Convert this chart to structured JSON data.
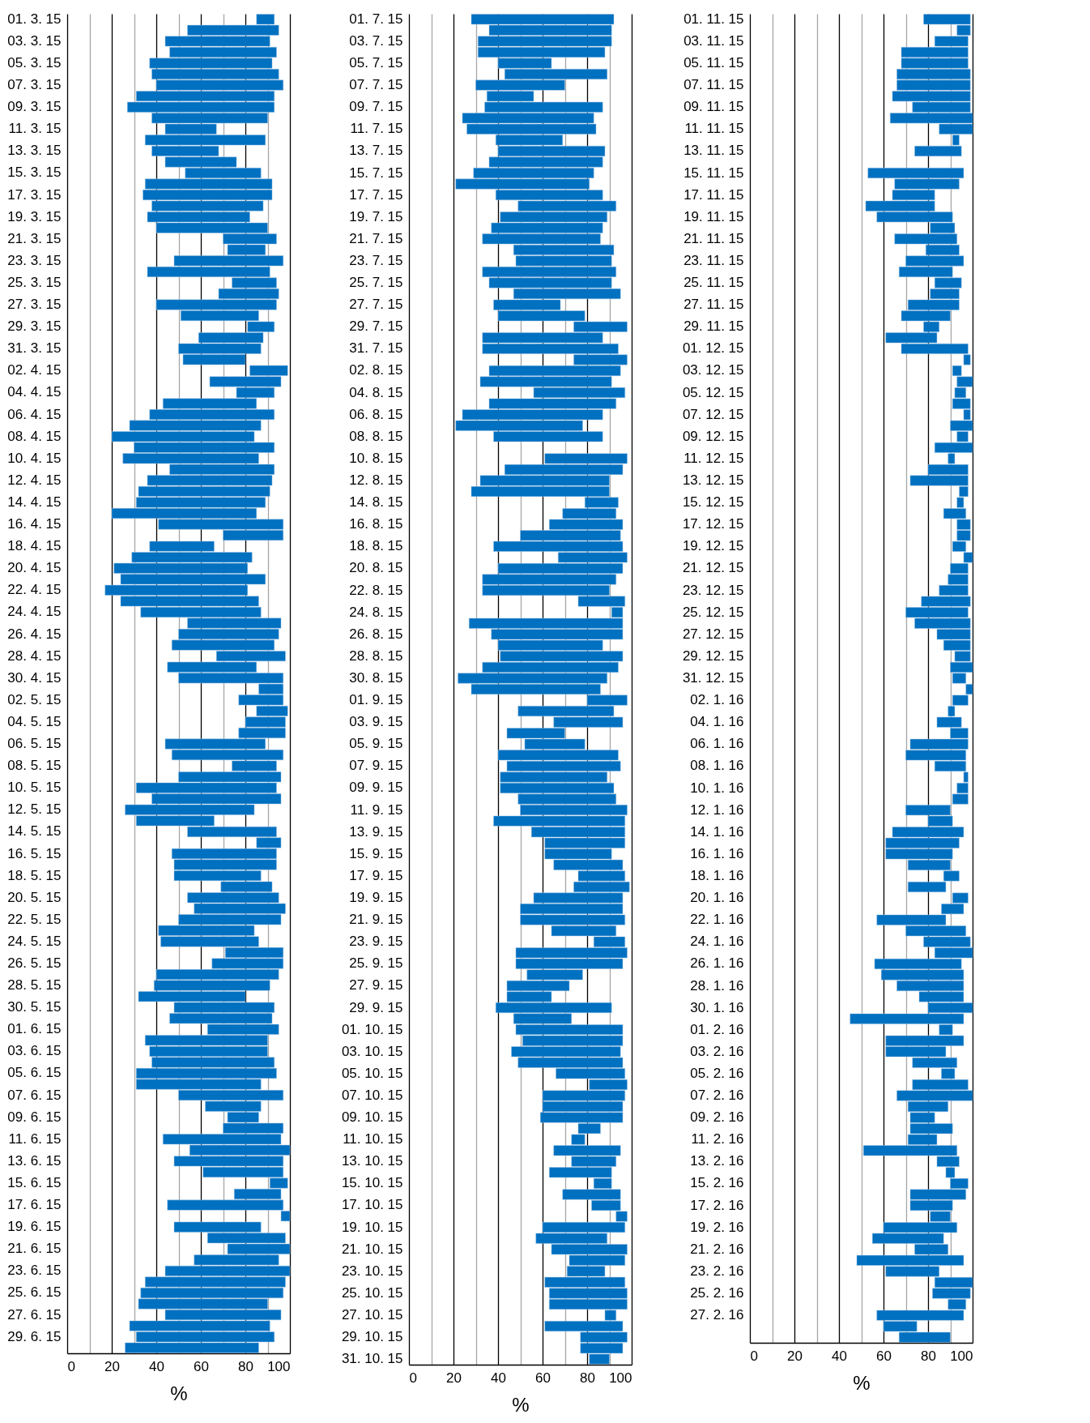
{
  "chart_data": [
    {
      "type": "bar",
      "orientation": "horizontal",
      "color": "#0070c0",
      "xlabel": "%",
      "grid": "x",
      "xlim": [
        0,
        100
      ],
      "xticks": [
        0,
        {
          "value": 10,
          "label": null
        },
        20,
        {
          "value": 30,
          "label": null
        },
        40,
        {
          "value": 50,
          "label": null
        },
        60,
        {
          "value": 70,
          "label": null
        },
        80,
        {
          "value": 90,
          "label": null
        },
        100
      ],
      "categories": [
        "01. 3. 15",
        null,
        "03. 3. 15",
        null,
        "05. 3. 15",
        null,
        "07. 3. 15",
        null,
        "09. 3. 15",
        null,
        "11. 3. 15",
        null,
        "13. 3. 15",
        null,
        "15. 3. 15",
        null,
        "17. 3. 15",
        null,
        "19. 3. 15",
        null,
        "21. 3. 15",
        null,
        "23. 3. 15",
        null,
        "25. 3. 15",
        null,
        "27. 3. 15",
        null,
        "29. 3. 15",
        null,
        "31. 3. 15",
        null,
        "02. 4. 15",
        null,
        "04. 4. 15",
        null,
        "06. 4. 15",
        null,
        "08. 4. 15",
        null,
        "10. 4. 15",
        null,
        "12. 4. 15",
        null,
        "14. 4. 15",
        null,
        "16. 4. 15",
        null,
        "18. 4. 15",
        null,
        "20. 4. 15",
        null,
        "22. 4. 15",
        null,
        "24. 4. 15",
        null,
        "26. 4. 15",
        null,
        "28. 4. 15",
        null,
        "30. 4. 15",
        null,
        "02. 5. 15",
        null,
        "04. 5. 15",
        null,
        "06. 5. 15",
        null,
        "08. 5. 15",
        null,
        "10. 5. 15",
        null,
        "12. 5. 15",
        null,
        "14. 5. 15",
        null,
        "16. 5. 15",
        null,
        "18. 5. 15",
        null,
        "20. 5. 15",
        null,
        "22. 5. 15",
        null,
        "24. 5. 15",
        null,
        "26. 5. 15",
        null,
        "28. 5. 15",
        null,
        "30. 5. 15",
        null,
        "01. 6. 15",
        null,
        "03. 6. 15",
        null,
        "05. 6. 15",
        null,
        "07. 6. 15",
        null,
        "09. 6. 15",
        null,
        "11. 6. 15",
        null,
        "13. 6. 15",
        null,
        "15. 6. 15",
        null,
        "17. 6. 15",
        null,
        "19. 6. 15",
        null,
        "21. 6. 15",
        null,
        "23. 6. 15",
        null,
        "25. 6. 15",
        null,
        "27. 6. 15",
        null,
        "29. 6. 15",
        null
      ],
      "base": [
        85,
        54,
        44,
        46,
        37,
        38,
        40,
        31,
        27,
        38,
        44,
        35,
        38,
        44,
        53,
        35,
        34,
        38,
        36,
        40,
        70,
        72,
        48,
        36,
        74,
        68,
        40,
        51,
        81,
        59,
        50,
        52,
        82,
        64,
        76,
        43,
        37,
        28,
        20,
        30,
        25,
        46,
        36,
        32,
        31,
        20,
        41,
        70,
        37,
        29,
        21,
        24,
        17,
        24,
        33,
        54,
        50,
        47,
        67,
        45,
        50,
        86,
        77,
        85,
        80,
        77,
        44,
        47,
        74,
        50,
        31,
        38,
        26,
        31,
        54,
        85,
        47,
        48,
        48,
        69,
        54,
        57,
        50,
        41,
        42,
        71,
        65,
        40,
        39,
        32,
        48,
        46,
        63,
        35,
        37,
        38,
        31,
        31,
        50,
        62,
        72,
        70,
        43,
        55,
        48,
        61,
        91,
        75,
        45,
        96,
        48,
        63,
        72,
        57,
        44,
        35,
        33,
        32,
        44,
        28,
        31,
        26
      ],
      "values": [
        8,
        41,
        47,
        48,
        55,
        57,
        57,
        62,
        66,
        52,
        23,
        54,
        30,
        32,
        34,
        57,
        58,
        50,
        46,
        50,
        24,
        17,
        49,
        55,
        20,
        27,
        54,
        35,
        12,
        29,
        37,
        28,
        17,
        32,
        17,
        42,
        56,
        59,
        64,
        63,
        61,
        47,
        56,
        59,
        58,
        65,
        56,
        27,
        29,
        54,
        60,
        65,
        64,
        62,
        54,
        42,
        45,
        46,
        31,
        40,
        47,
        11,
        20,
        14,
        18,
        21,
        45,
        50,
        20,
        46,
        63,
        58,
        58,
        35,
        40,
        11,
        47,
        46,
        39,
        23,
        41,
        41,
        46,
        43,
        44,
        26,
        32,
        55,
        52,
        48,
        45,
        46,
        32,
        55,
        53,
        55,
        63,
        56,
        47,
        25,
        14,
        27,
        53,
        45,
        49,
        36,
        8,
        21,
        52,
        4,
        39,
        35,
        28,
        38,
        56,
        63,
        64,
        58,
        52,
        63,
        62,
        60
      ]
    },
    {
      "type": "bar",
      "orientation": "horizontal",
      "color": "#0070c0",
      "xlabel": "%",
      "grid": "x",
      "xlim": [
        0,
        100
      ],
      "xticks": [
        0,
        {
          "value": 10,
          "label": null
        },
        20,
        {
          "value": 30,
          "label": null
        },
        40,
        {
          "value": 50,
          "label": null
        },
        60,
        {
          "value": 70,
          "label": null
        },
        80,
        {
          "value": 90,
          "label": null
        },
        100
      ],
      "categories": [
        "01. 7. 15",
        null,
        "03. 7. 15",
        null,
        "05. 7. 15",
        null,
        "07. 7. 15",
        null,
        "09. 7. 15",
        null,
        "11. 7. 15",
        null,
        "13. 7. 15",
        null,
        "15. 7. 15",
        null,
        "17. 7. 15",
        null,
        "19. 7. 15",
        null,
        "21. 7. 15",
        null,
        "23. 7. 15",
        null,
        "25. 7. 15",
        null,
        "27. 7. 15",
        null,
        "29. 7. 15",
        null,
        "31. 7. 15",
        null,
        "02. 8. 15",
        null,
        "04. 8. 15",
        null,
        "06. 8. 15",
        null,
        "08. 8. 15",
        null,
        "10. 8. 15",
        null,
        "12. 8. 15",
        null,
        "14. 8. 15",
        null,
        "16. 8. 15",
        null,
        "18. 8. 15",
        null,
        "20. 8. 15",
        null,
        "22. 8. 15",
        null,
        "24. 8. 15",
        null,
        "26. 8. 15",
        null,
        "28. 8. 15",
        null,
        "30. 8. 15",
        null,
        "01. 9. 15",
        null,
        "03. 9. 15",
        null,
        "05. 9. 15",
        null,
        "07. 9. 15",
        null,
        "09. 9. 15",
        null,
        "11. 9. 15",
        null,
        "13. 9. 15",
        null,
        "15. 9. 15",
        null,
        "17. 9. 15",
        null,
        "19. 9. 15",
        null,
        "21. 9. 15",
        null,
        "23. 9. 15",
        null,
        "25. 9. 15",
        null,
        "27. 9. 15",
        null,
        "29. 9. 15",
        null,
        "01. 10. 15",
        null,
        "03. 10. 15",
        null,
        "05. 10. 15",
        null,
        "07. 10. 15",
        null,
        "09. 10. 15",
        null,
        "11. 10. 15",
        null,
        "13. 10. 15",
        null,
        "15. 10. 15",
        null,
        "17. 10. 15",
        null,
        "19. 10. 15",
        null,
        "21. 10. 15",
        null,
        "23. 10. 15",
        null,
        "25. 10. 15",
        null,
        "27. 10. 15",
        null,
        "29. 10. 15",
        null,
        "31. 10. 15"
      ],
      "base": [
        28,
        36,
        31,
        31,
        40,
        43,
        30,
        35,
        34,
        24,
        26,
        39,
        40,
        36,
        29,
        21,
        39,
        49,
        41,
        37,
        33,
        47,
        48,
        33,
        36,
        47,
        38,
        40,
        74,
        33,
        33,
        74,
        36,
        32,
        56,
        36,
        24,
        21,
        38,
        null,
        61,
        43,
        32,
        28,
        79,
        69,
        63,
        50,
        38,
        67,
        40,
        33,
        33,
        76,
        91,
        27,
        37,
        40,
        41,
        33,
        22,
        28,
        80,
        49,
        65,
        44,
        52,
        40,
        44,
        41,
        41,
        49,
        50,
        38,
        55,
        61,
        61,
        65,
        76,
        74,
        56,
        50,
        50,
        64,
        83,
        48,
        48,
        53,
        44,
        44,
        39,
        47,
        48,
        51,
        46,
        49,
        66,
        81,
        60,
        60,
        59,
        76,
        73,
        65,
        73,
        63,
        83,
        69,
        82,
        93,
        60,
        57,
        64,
        72,
        71,
        61,
        63,
        63,
        88,
        61,
        77,
        77,
        81
      ],
      "values": [
        64,
        55,
        60,
        57,
        24,
        46,
        40,
        21,
        53,
        59,
        58,
        30,
        48,
        51,
        54,
        60,
        48,
        44,
        48,
        50,
        53,
        45,
        43,
        60,
        55,
        48,
        30,
        39,
        24,
        54,
        61,
        24,
        59,
        59,
        41,
        57,
        63,
        57,
        49,
        null,
        37,
        53,
        58,
        62,
        15,
        24,
        33,
        45,
        58,
        31,
        56,
        60,
        57,
        21,
        5,
        69,
        59,
        47,
        55,
        61,
        67,
        58,
        18,
        43,
        31,
        26,
        27,
        54,
        51,
        48,
        51,
        44,
        48,
        59,
        42,
        36,
        30,
        31,
        21,
        25,
        40,
        46,
        47,
        29,
        14,
        50,
        48,
        25,
        28,
        20,
        52,
        26,
        48,
        45,
        49,
        47,
        31,
        17,
        37,
        36,
        37,
        10,
        6,
        30,
        20,
        28,
        8,
        26,
        13,
        5,
        37,
        32,
        34,
        25,
        17,
        36,
        35,
        35,
        5,
        35,
        21,
        19,
        9
      ]
    },
    {
      "type": "bar",
      "orientation": "horizontal",
      "color": "#0070c0",
      "xlabel": "%",
      "grid": "x",
      "xlim": [
        0,
        100
      ],
      "xticks": [
        0,
        {
          "value": 10,
          "label": null
        },
        20,
        {
          "value": 30,
          "label": null
        },
        40,
        {
          "value": 50,
          "label": null
        },
        60,
        {
          "value": 70,
          "label": null
        },
        80,
        {
          "value": 90,
          "label": null
        },
        100
      ],
      "categories": [
        "01. 11. 15",
        null,
        "03. 11. 15",
        null,
        "05. 11. 15",
        null,
        "07. 11. 15",
        null,
        "09. 11. 15",
        null,
        "11. 11. 15",
        null,
        "13. 11. 15",
        null,
        "15. 11. 15",
        null,
        "17. 11. 15",
        null,
        "19. 11. 15",
        null,
        "21. 11. 15",
        null,
        "23. 11. 15",
        null,
        "25. 11. 15",
        null,
        "27. 11. 15",
        null,
        "29. 11. 15",
        null,
        "01. 12. 15",
        null,
        "03. 12. 15",
        null,
        "05. 12. 15",
        null,
        "07. 12. 15",
        null,
        "09. 12. 15",
        null,
        "11. 12. 15",
        null,
        "13. 12. 15",
        null,
        "15. 12. 15",
        null,
        "17. 12. 15",
        null,
        "19. 12. 15",
        null,
        "21. 12. 15",
        null,
        "23. 12. 15",
        null,
        "25. 12. 15",
        null,
        "27. 12. 15",
        null,
        "29. 12. 15",
        null,
        "31. 12. 15",
        null,
        "02. 1. 16",
        null,
        "04. 1. 16",
        null,
        "06. 1. 16",
        null,
        "08. 1. 16",
        null,
        "10. 1. 16",
        null,
        "12. 1. 16",
        null,
        "14. 1. 16",
        null,
        "16. 1. 16",
        null,
        "18. 1. 16",
        null,
        "20. 1. 16",
        null,
        "22. 1. 16",
        null,
        "24. 1. 16",
        null,
        "26. 1. 16",
        null,
        "28. 1. 16",
        null,
        "30. 1. 16",
        null,
        "01. 2. 16",
        null,
        "03. 2. 16",
        null,
        "05. 2. 16",
        null,
        "07. 2. 16",
        null,
        "09. 2. 16",
        null,
        "11. 2. 16",
        null,
        "13. 2. 16",
        null,
        "15. 2. 16",
        null,
        "17. 2. 16",
        null,
        "19. 2. 16",
        null,
        "21. 2. 16",
        null,
        "23. 2. 16",
        null,
        "25. 2. 16",
        null,
        "27. 2. 16",
        null,
        null
      ],
      "base": [
        78,
        93,
        83,
        68,
        68,
        66,
        66,
        64,
        73,
        63,
        85,
        91,
        74,
        null,
        53,
        65,
        64,
        52,
        57,
        81,
        65,
        79,
        70,
        67,
        83,
        81,
        71,
        68,
        78,
        61,
        68,
        96,
        91,
        93,
        92,
        91,
        96,
        90,
        93,
        83,
        89,
        80,
        72,
        94,
        93,
        87,
        93,
        93,
        91,
        96,
        90,
        89,
        85,
        77,
        70,
        74,
        84,
        87,
        92,
        90,
        91,
        97,
        91,
        89,
        84,
        90,
        72,
        70,
        83,
        96,
        93,
        91,
        70,
        80,
        64,
        61,
        61,
        71,
        87,
        71,
        91,
        86,
        57,
        70,
        78,
        83,
        56,
        59,
        66,
        76,
        80,
        45,
        85,
        61,
        61,
        73,
        86,
        73,
        66,
        71,
        72,
        72,
        71,
        51,
        84,
        88,
        90,
        72,
        72,
        81,
        60,
        55,
        74,
        48,
        61,
        83,
        82,
        89,
        57,
        60,
        67
      ],
      "values": [
        21,
        6,
        15,
        30,
        30,
        33,
        33,
        35,
        26,
        37,
        15,
        3,
        21,
        null,
        43,
        29,
        19,
        31,
        34,
        11,
        28,
        15,
        26,
        24,
        12,
        13,
        23,
        22,
        7,
        23,
        30,
        3,
        4,
        7,
        5,
        8,
        3,
        10,
        5,
        17,
        3,
        18,
        26,
        4,
        3,
        10,
        6,
        6,
        6,
        4,
        8,
        9,
        13,
        22,
        28,
        25,
        15,
        12,
        7,
        10,
        6,
        3,
        7,
        3,
        11,
        8,
        26,
        27,
        14,
        2,
        5,
        7,
        20,
        11,
        32,
        33,
        30,
        19,
        7,
        17,
        7,
        10,
        31,
        27,
        21,
        17,
        39,
        37,
        30,
        20,
        20,
        51,
        6,
        35,
        27,
        20,
        6,
        25,
        34,
        18,
        11,
        19,
        13,
        42,
        10,
        4,
        8,
        25,
        19,
        9,
        33,
        32,
        15,
        48,
        24,
        17,
        17,
        8,
        39,
        15,
        23
      ]
    }
  ]
}
